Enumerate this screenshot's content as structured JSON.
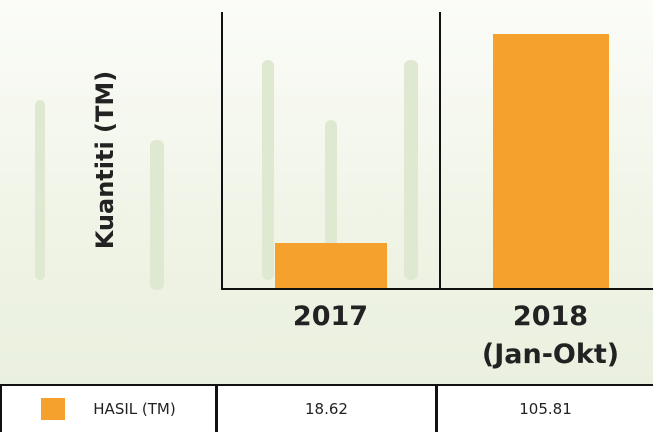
{
  "chart_data": {
    "type": "bar",
    "y_label": "Kuantiti (TM)",
    "categories": [
      "2017",
      "2018\n(Jan-Okt)"
    ],
    "series": [
      {
        "name": "HASIL (TM)",
        "color": "#f4a22d",
        "values": [
          18.62,
          105.81
        ]
      }
    ],
    "ylim": [
      0,
      115
    ]
  }
}
